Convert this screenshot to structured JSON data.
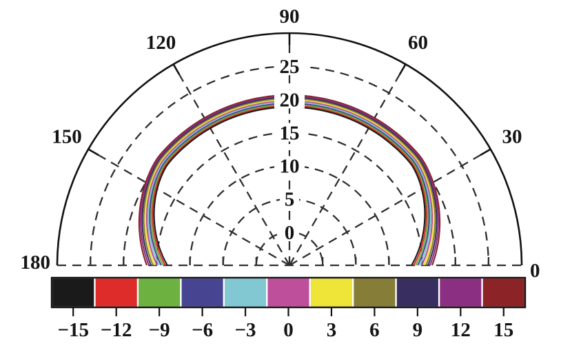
{
  "chart_data": {
    "type": "polar-contour",
    "title": "",
    "angular_axis": {
      "unit": "degrees",
      "range": [
        0,
        180
      ],
      "ticks": [
        {
          "angle": 0,
          "label": "0"
        },
        {
          "angle": 30,
          "label": "30"
        },
        {
          "angle": 60,
          "label": "60"
        },
        {
          "angle": 90,
          "label": "90"
        },
        {
          "angle": 120,
          "label": "120"
        },
        {
          "angle": 150,
          "label": "150"
        },
        {
          "angle": 180,
          "label": "180"
        }
      ],
      "grid_angles": [
        30,
        60,
        90,
        120,
        150
      ]
    },
    "radial_axis": {
      "min": -5,
      "max": 30,
      "outer_circle_radius": 30,
      "grid_radii": [
        0,
        5,
        10,
        15,
        20,
        25
      ],
      "tick_labels": [
        "0",
        "5",
        "10",
        "15",
        "20",
        "25"
      ]
    },
    "grid": {
      "style": "dashed",
      "color": "#2e2e2e"
    },
    "levels": [
      {
        "value": -15,
        "label": "−15",
        "color": "#1a1a1a"
      },
      {
        "value": -12,
        "label": "−12",
        "color": "#dd2c2a"
      },
      {
        "value": -9,
        "label": "−9",
        "color": "#6db241"
      },
      {
        "value": -6,
        "label": "−6",
        "color": "#474592"
      },
      {
        "value": -3,
        "label": "−3",
        "color": "#82c8d2"
      },
      {
        "value": 0,
        "label": "0",
        "color": "#bd4f9b"
      },
      {
        "value": 3,
        "label": "3",
        "color": "#efe438"
      },
      {
        "value": 6,
        "label": "6",
        "color": "#867e38"
      },
      {
        "value": 9,
        "label": "9",
        "color": "#382f60"
      },
      {
        "value": 12,
        "label": "12",
        "color": "#8b2f82"
      },
      {
        "value": 15,
        "label": "15",
        "color": "#8b2327"
      }
    ],
    "contours": {
      "ordering": "level -15 innermost, level +15 outermost",
      "peak_radius_innermost": 18.85,
      "peak_radius_outermost": 20.65,
      "edge_radius_innermost": 13.4,
      "edge_radius_outermost": 16.5,
      "flat_top_halfwidth_deg": 50,
      "falloff_exponent": 1.35
    },
    "colorbar": {
      "position": "bottom",
      "tick_labels": [
        "−15",
        "−12",
        "−9",
        "−6",
        "−3",
        "0",
        "3",
        "6",
        "9",
        "12",
        "15"
      ]
    }
  }
}
